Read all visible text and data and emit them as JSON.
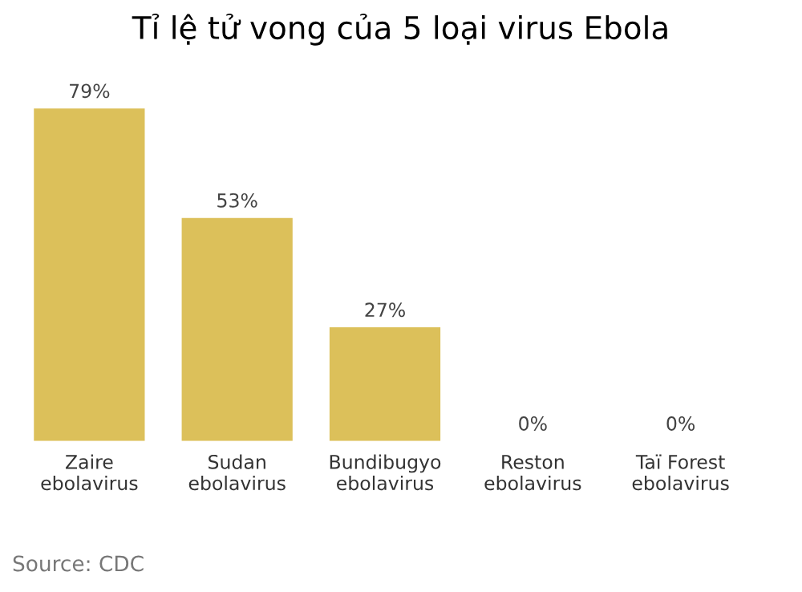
{
  "chart_data": {
    "type": "bar",
    "title": "Tỉ lệ tử vong của 5 loại virus Ebola",
    "categories": [
      "Zaire\nebolavirus",
      "Sudan\nebolavirus",
      "Bundibugyo\nebolavirus",
      "Reston\nebolavirus",
      "Taï Forest\nebolavirus"
    ],
    "values": [
      79,
      53,
      27,
      0,
      0
    ],
    "color": "#dcc05a",
    "value_labels": [
      "79%",
      "53%",
      "27%",
      "0%",
      "0%"
    ],
    "annotations": [
      "Source: CDC"
    ],
    "grid": false
  }
}
